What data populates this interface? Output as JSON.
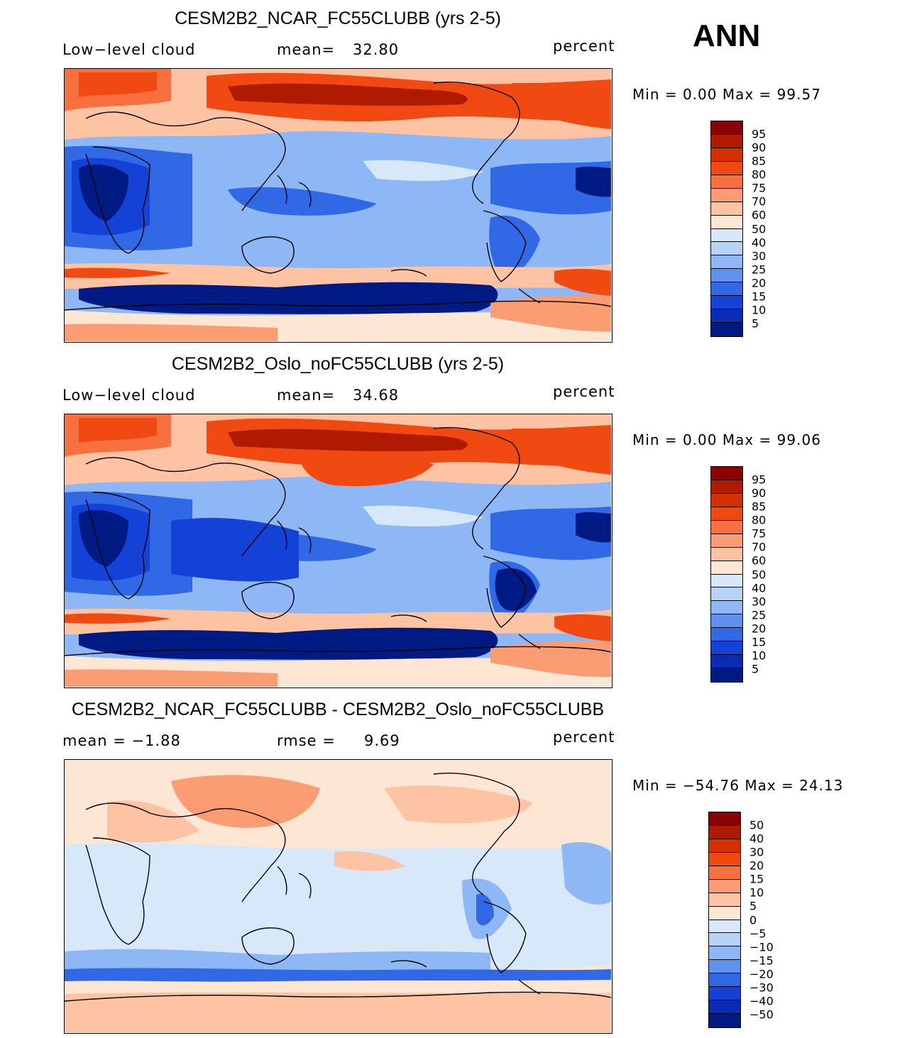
{
  "season": "ANN",
  "panels": [
    {
      "title": "CESM2B2_NCAR_FC55CLUBB (yrs 2-5)",
      "left_label": "Low−level cloud",
      "mid_label": "mean=",
      "mid_value": "32.80",
      "units": "percent",
      "minmax": "Min =    0.00 Max =   99.57",
      "colorbar": {
        "colors": [
          "#8b0000",
          "#b01a00",
          "#d53000",
          "#f04a12",
          "#f97040",
          "#fb9c72",
          "#fdc3a2",
          "#fde6d4",
          "#d8e8fb",
          "#b7d3f8",
          "#8eb7f5",
          "#5e92ee",
          "#3068e6",
          "#1542d6",
          "#0a2cb5",
          "#001a84"
        ],
        "labels": [
          "95",
          "90",
          "85",
          "80",
          "75",
          "70",
          "60",
          "50",
          "40",
          "30",
          "25",
          "20",
          "15",
          "10",
          "5"
        ]
      }
    },
    {
      "title": "CESM2B2_Oslo_noFC55CLUBB (yrs 2-5)",
      "left_label": "Low−level cloud",
      "mid_label": "mean=",
      "mid_value": "34.68",
      "units": "percent",
      "minmax": "Min =    0.00 Max =   99.06",
      "colorbar": {
        "colors": [
          "#8b0000",
          "#b01a00",
          "#d53000",
          "#f04a12",
          "#f97040",
          "#fb9c72",
          "#fdc3a2",
          "#fde6d4",
          "#d8e8fb",
          "#b7d3f8",
          "#8eb7f5",
          "#5e92ee",
          "#3068e6",
          "#1542d6",
          "#0a2cb5",
          "#001a84"
        ],
        "labels": [
          "95",
          "90",
          "85",
          "80",
          "75",
          "70",
          "60",
          "50",
          "40",
          "30",
          "25",
          "20",
          "15",
          "10",
          "5"
        ]
      }
    },
    {
      "title": "CESM2B2_NCAR_FC55CLUBB - CESM2B2_Oslo_noFC55CLUBB",
      "left_label": "mean =   −1.88",
      "mid_label": "rmse =",
      "mid_value": "9.69",
      "units": "percent",
      "minmax": "Min = −54.76 Max =   24.13",
      "colorbar": {
        "colors": [
          "#8b0000",
          "#b01a00",
          "#d53000",
          "#f04a12",
          "#f97040",
          "#fb9c72",
          "#fdc3a2",
          "#fde6d4",
          "#d8e8fb",
          "#b7d3f8",
          "#8eb7f5",
          "#5e92ee",
          "#3068e6",
          "#1542d6",
          "#0a2cb5",
          "#001a84"
        ],
        "labels": [
          "50",
          "40",
          "30",
          "20",
          "15",
          "10",
          "5",
          "0",
          "−5",
          "−10",
          "−15",
          "−20",
          "−30",
          "−40",
          "−50"
        ]
      }
    }
  ],
  "map_colors": {
    "ocean_bg": "#8eb7f5",
    "deep_blue": "#001a84",
    "mid_blue": "#1542d6",
    "light_blue": "#d8e8fb",
    "pale": "#fde6d4",
    "salmon": "#fb9c72",
    "orange": "#f04a12",
    "dark_red": "#b01a00",
    "coast": "#000000"
  }
}
